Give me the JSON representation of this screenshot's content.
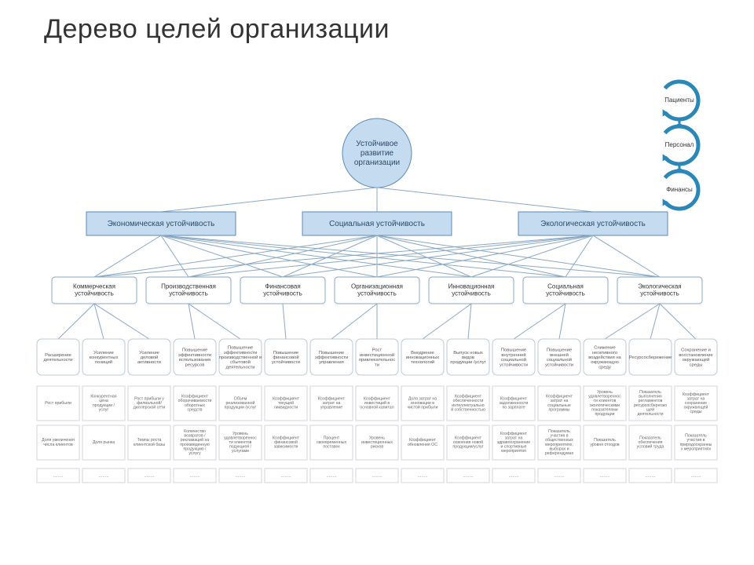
{
  "title": "Дерево целей организации",
  "colors": {
    "root_fill": "#c5dcf0",
    "root_stroke": "#5b8ab4",
    "l1_fill": "#c5dcf0",
    "l1_stroke": "#5b8ab4",
    "l2_stroke": "#8aa8c4",
    "leaf_stroke": "#bcc8d4",
    "metric_stroke": "#d0d6dc",
    "edge": "#8aa8c4",
    "cycle_ring": "#2b87b8",
    "cycle_fill": "#ffffff",
    "background": "#ffffff"
  },
  "cycle": [
    {
      "label": "Пациенты"
    },
    {
      "label": "Персонал"
    },
    {
      "label": "Финансы"
    }
  ],
  "root": {
    "lines": [
      "Устойчивое",
      "развитие",
      "организации"
    ]
  },
  "level1": [
    {
      "label": "Экономическая устойчивость"
    },
    {
      "label": "Социальная устойчивость"
    },
    {
      "label": "Экологическая устойчивость"
    }
  ],
  "level2": [
    {
      "lines": [
        "Коммерческая",
        "устойчивость"
      ]
    },
    {
      "lines": [
        "Производственная",
        "устойчивость"
      ]
    },
    {
      "lines": [
        "Финансовая",
        "устойчивость"
      ]
    },
    {
      "lines": [
        "Организационная",
        "устойчивость"
      ]
    },
    {
      "lines": [
        "Инновационная",
        "устойчивость"
      ]
    },
    {
      "lines": [
        "Социальная",
        "устойчивость"
      ]
    },
    {
      "lines": [
        "Экологическая",
        "устойчивость"
      ]
    }
  ],
  "leaves": [
    {
      "lines": [
        "Расширение",
        "деятельности"
      ]
    },
    {
      "lines": [
        "Усиление",
        "конкурентных",
        "позиций"
      ]
    },
    {
      "lines": [
        "Усиление",
        "деловой",
        "активности"
      ]
    },
    {
      "lines": [
        "Повышение",
        "эффективности",
        "использования",
        "ресурсов"
      ]
    },
    {
      "lines": [
        "Повышение",
        "эффективности",
        "производственной и",
        "сбытовой",
        "деятельности"
      ]
    },
    {
      "lines": [
        "Повышение",
        "финансовой",
        "устойчивости"
      ]
    },
    {
      "lines": [
        "Повышение",
        "эффективности",
        "управления"
      ]
    },
    {
      "lines": [
        "Рост",
        "инвестиционной",
        "привлекательнос",
        "ти"
      ]
    },
    {
      "lines": [
        "Внедрение",
        "инновационных",
        "технологий"
      ]
    },
    {
      "lines": [
        "Выпуск новых",
        "видов",
        "продукции /услуг"
      ]
    },
    {
      "lines": [
        "Повышение",
        "внутренней",
        "социальной",
        "устойчивости"
      ]
    },
    {
      "lines": [
        "Повышение",
        "внешней",
        "социальной",
        "устойчивости"
      ]
    },
    {
      "lines": [
        "Снижение",
        "негативного",
        "воздействия на",
        "окружающую",
        "среду"
      ]
    },
    {
      "lines": [
        "Ресурсосбережение"
      ]
    },
    {
      "lines": [
        "Сохранение и",
        "восстановление",
        "окружающей",
        "среды"
      ]
    }
  ],
  "metrics_rows": [
    [
      {
        "lines": [
          "Рост прибыли"
        ]
      },
      {
        "lines": [
          "Конкурентная",
          "цена",
          "продукции /",
          "услуг"
        ]
      },
      {
        "lines": [
          "Рост прибыли у",
          "филиальной/",
          "диллерской сети"
        ]
      },
      {
        "lines": [
          "Коэффициент",
          "оборачиваемости",
          "оборотных",
          "средств"
        ]
      },
      {
        "lines": [
          "Объем",
          "реализованной",
          "продукции /услуг"
        ]
      },
      {
        "lines": [
          "Коэффициент",
          "текущей",
          "ликвидности"
        ]
      },
      {
        "lines": [
          "Коэффициент",
          "затрат на",
          "управление"
        ]
      },
      {
        "lines": [
          "Коэффициент",
          "инвестиций в",
          "основной капитал"
        ]
      },
      {
        "lines": [
          "Доля затрат на",
          "инновации в",
          "чистой прибыли"
        ]
      },
      {
        "lines": [
          "Коэффициент",
          "обеспеченности",
          "интеллектуально",
          "й собственностью"
        ]
      },
      {
        "lines": [
          "Коэффициент",
          "задолженности",
          "по зарплате"
        ]
      },
      {
        "lines": [
          "Коэффициент",
          "затрат на",
          "социальные",
          "программы"
        ]
      },
      {
        "lines": [
          "Уровень",
          "удовлетвореннос",
          "ти клиентов",
          "экологическими",
          "показателями",
          "продукции"
        ]
      },
      {
        "lines": [
          "Показатель",
          "выполнения",
          "регламентов",
          "ресурсосберегаю",
          "щей",
          "деятельности"
        ]
      },
      {
        "lines": [
          "Коэффициент",
          "затрат на",
          "сохранение",
          "окружающей",
          "среды"
        ]
      }
    ],
    [
      {
        "lines": [
          "Доля увеличения",
          "числа клиентов"
        ]
      },
      {
        "lines": [
          "Доля рынка"
        ]
      },
      {
        "lines": [
          "Темпы роста",
          "клиентской базы"
        ]
      },
      {
        "lines": [
          "Количество",
          "возвратов /",
          "рекламаций на",
          "произведенную",
          "продукцию /",
          "услугу"
        ]
      },
      {
        "lines": [
          "Уровень",
          "удовлетвореннос",
          "ти клиентов",
          "подукцией /",
          "услугами"
        ]
      },
      {
        "lines": [
          "Коэффициент",
          "финансовой",
          "зависимости"
        ]
      },
      {
        "lines": [
          "Процент",
          "своевременных",
          "поставок"
        ]
      },
      {
        "lines": [
          "Уровень",
          "инвестиционных",
          "рисков"
        ]
      },
      {
        "lines": [
          "Коэффициент",
          "обновления ОС"
        ]
      },
      {
        "lines": [
          "Коэффициент",
          "освоения новой",
          "продукции/услуг"
        ]
      },
      {
        "lines": [
          "Коэффициент",
          "затрат на",
          "здравоохранение",
          "и спортивные",
          "мероприятия"
        ]
      },
      {
        "lines": [
          "Показатель",
          "участия в",
          "общественных",
          "мероприятиях,",
          "выборах и",
          "референдумах"
        ]
      },
      {
        "lines": [
          "Показатель",
          "уровня отходов"
        ]
      },
      {
        "lines": [
          "Показатель",
          "обеспечения",
          "условий труда"
        ]
      },
      {
        "lines": [
          "Показатель",
          "участия в",
          "природоохранны",
          "х мероприятиях"
        ]
      }
    ]
  ],
  "dots_row_count": 15,
  "dots": "........"
}
